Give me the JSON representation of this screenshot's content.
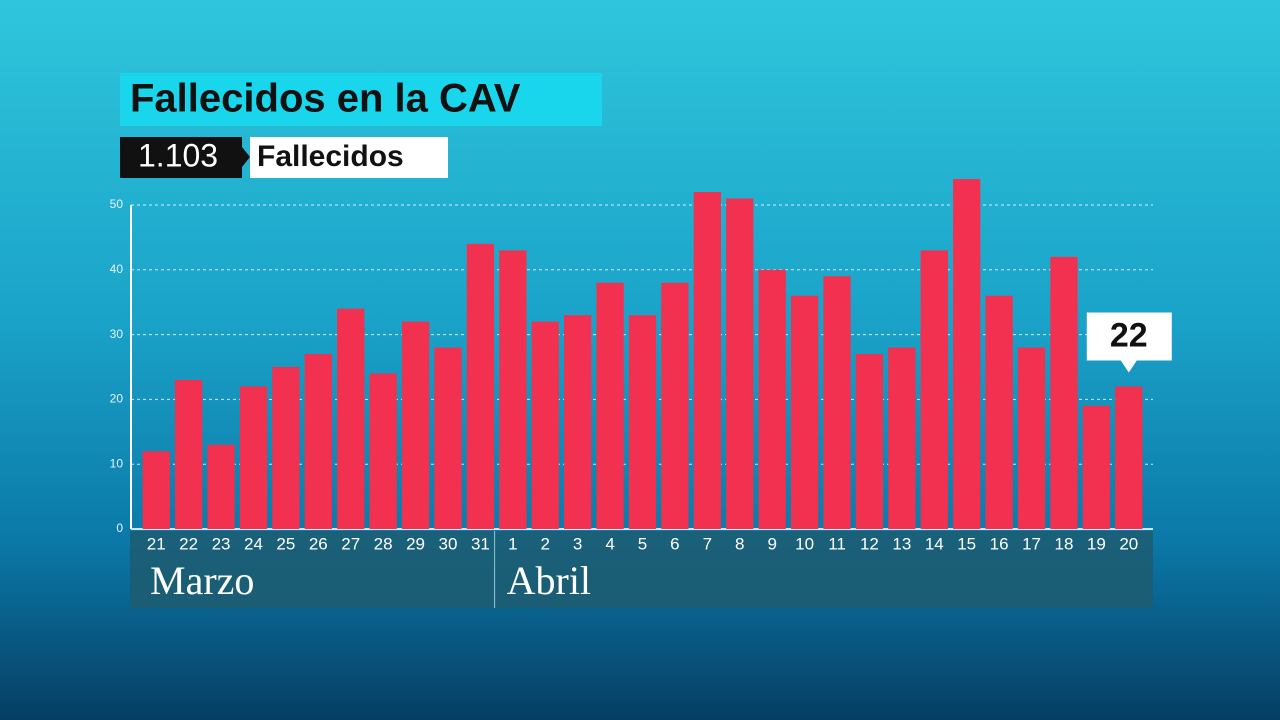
{
  "chart_data": {
    "type": "bar",
    "title": "Fallecidos en la CAV",
    "total": "1.103",
    "subtitle": "Fallecidos",
    "categories": [
      "21",
      "22",
      "23",
      "24",
      "25",
      "26",
      "27",
      "28",
      "29",
      "30",
      "31",
      "1",
      "2",
      "3",
      "4",
      "5",
      "6",
      "7",
      "8",
      "9",
      "10",
      "11",
      "12",
      "13",
      "14",
      "15",
      "16",
      "17",
      "18",
      "19",
      "20"
    ],
    "groups": [
      "Marzo",
      "Abril"
    ],
    "values": [
      12,
      23,
      13,
      22,
      25,
      27,
      34,
      24,
      32,
      28,
      44,
      43,
      32,
      33,
      38,
      33,
      38,
      52,
      51,
      40,
      36,
      39,
      27,
      28,
      43,
      54,
      36,
      28,
      42,
      19,
      22
    ],
    "color": "#f2304f",
    "ylim": [
      0,
      50
    ],
    "yticks": [
      0,
      10,
      20,
      30,
      40,
      50
    ],
    "grid": true
  }
}
